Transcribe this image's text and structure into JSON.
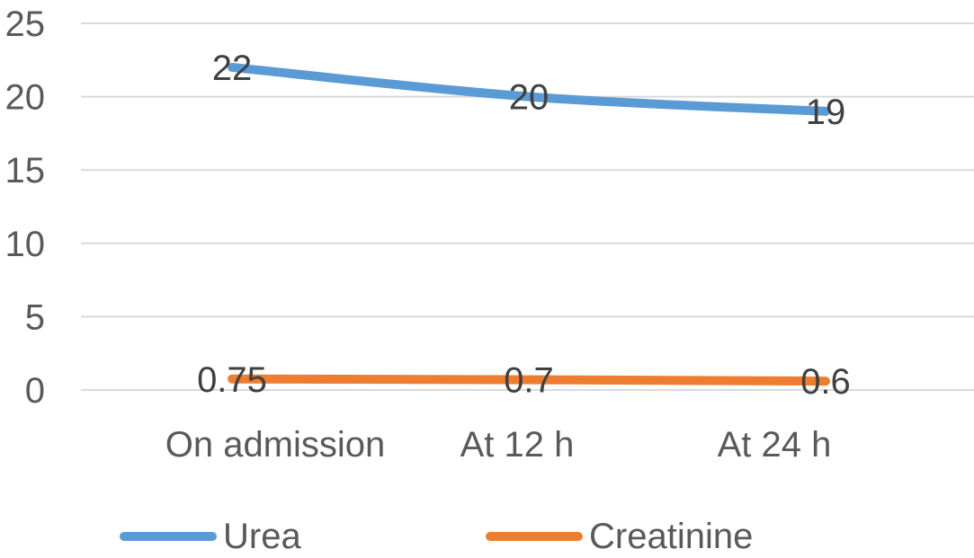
{
  "chart_data": {
    "type": "line",
    "categories": [
      "On admission",
      "At 12 h",
      "At 24 h"
    ],
    "series": [
      {
        "name": "Urea",
        "values": [
          22,
          20,
          19
        ],
        "labels": [
          "22",
          "20",
          "19"
        ],
        "color": "#5B9BD5"
      },
      {
        "name": "Creatinine",
        "values": [
          0.75,
          0.7,
          0.6
        ],
        "labels": [
          "0.75",
          "0.7",
          "0.6"
        ],
        "color": "#ED7D31"
      }
    ],
    "ylim": [
      0,
      25
    ],
    "yticks": [
      0,
      5,
      10,
      15,
      20,
      25
    ],
    "ytick_labels": [
      "0",
      "5",
      "10",
      "15",
      "20",
      "25"
    ],
    "grid": true,
    "legend": "bottom",
    "gridline_color": "#D9D9D9"
  }
}
